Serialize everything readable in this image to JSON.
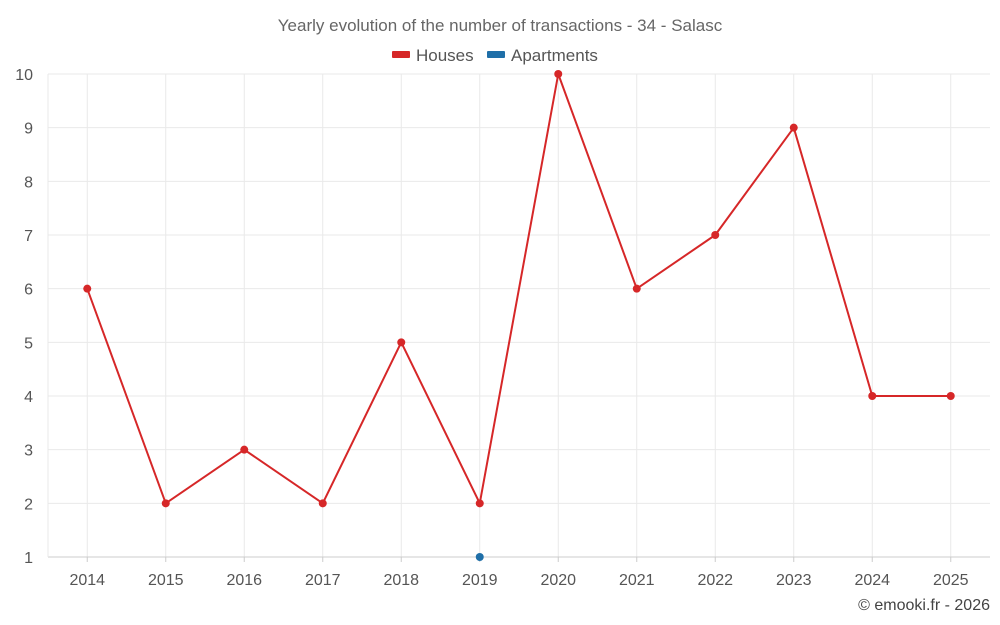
{
  "chart_data": {
    "type": "line",
    "title": "Yearly evolution of the number of transactions - 34 - Salasc",
    "xlabel": "",
    "ylabel": "",
    "categories": [
      "2014",
      "2015",
      "2016",
      "2017",
      "2018",
      "2019",
      "2020",
      "2021",
      "2022",
      "2023",
      "2024",
      "2025"
    ],
    "ylim": [
      1,
      10
    ],
    "yticks": [
      "1",
      "2",
      "3",
      "4",
      "5",
      "6",
      "7",
      "8",
      "9",
      "10"
    ],
    "grid": true,
    "legend_position": "top-center",
    "series": [
      {
        "name": "Houses",
        "color": "#d62728",
        "values": [
          6,
          2,
          3,
          2,
          5,
          2,
          10,
          6,
          7,
          9,
          4,
          4
        ]
      },
      {
        "name": "Apartments",
        "color": "#1f6fa8",
        "values": [
          null,
          null,
          null,
          null,
          null,
          1,
          null,
          null,
          null,
          null,
          null,
          null
        ]
      }
    ]
  },
  "credit": "© emooki.fr - 2026"
}
